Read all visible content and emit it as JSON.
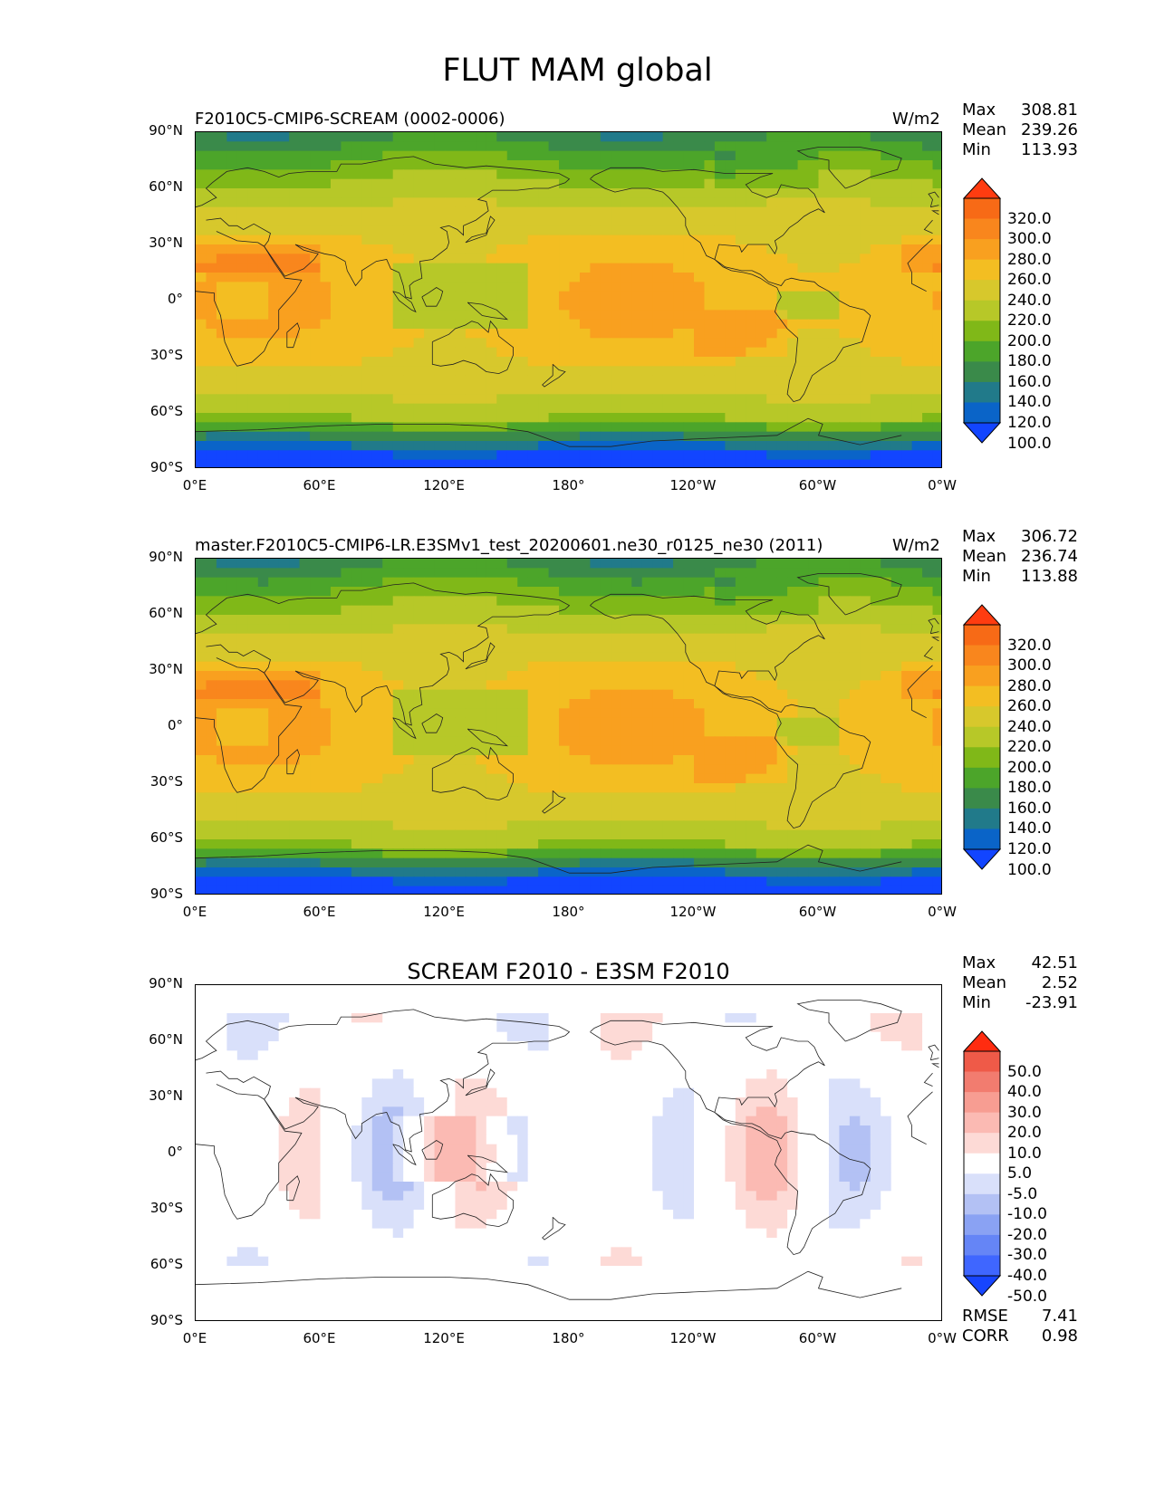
{
  "figure": {
    "title": "FLUT MAM global"
  },
  "axes": {
    "y_ticks": [
      "90°N",
      "60°N",
      "30°N",
      "0°",
      "30°S",
      "60°S",
      "90°S"
    ],
    "x_ticks": [
      "0°E",
      "60°E",
      "120°E",
      "180°",
      "120°W",
      "60°W",
      "0°W"
    ]
  },
  "panels": [
    {
      "name": "test",
      "title_left": "F2010C5-CMIP6-SCREAM (0002-0006)",
      "units": "W/m2",
      "stats": {
        "max_label": "Max",
        "max": "308.81",
        "mean_label": "Mean",
        "mean": "239.26",
        "min_label": "Min",
        "min": "113.93"
      },
      "colorbar_labels": [
        "320.0",
        "300.0",
        "280.0",
        "260.0",
        "240.0",
        "220.0",
        "200.0",
        "180.0",
        "160.0",
        "140.0",
        "120.0",
        "100.0"
      ]
    },
    {
      "name": "reference",
      "title_left": "master.F2010C5-CMIP6-LR.E3SMv1_test_20200601.ne30_r0125_ne30 (2011)",
      "units": "W/m2",
      "stats": {
        "max_label": "Max",
        "max": "306.72",
        "mean_label": "Mean",
        "mean": "236.74",
        "min_label": "Min",
        "min": "113.88"
      },
      "colorbar_labels": [
        "320.0",
        "300.0",
        "280.0",
        "260.0",
        "240.0",
        "220.0",
        "200.0",
        "180.0",
        "160.0",
        "140.0",
        "120.0",
        "100.0"
      ]
    },
    {
      "name": "difference",
      "title_center": "SCREAM F2010 - E3SM F2010",
      "stats": {
        "max_label": "Max",
        "max": "42.51",
        "mean_label": "Mean",
        "mean": "2.52",
        "min_label": "Min",
        "min": "-23.91"
      },
      "colorbar_labels": [
        "50.0",
        "40.0",
        "30.0",
        "20.0",
        "10.0",
        "5.0",
        "-5.0",
        "-10.0",
        "-20.0",
        "-30.0",
        "-40.0",
        "-50.0"
      ],
      "footer": {
        "rmse_label": "RMSE",
        "rmse": "7.41",
        "corr_label": "CORR",
        "corr": "0.98"
      }
    }
  ],
  "colors": {
    "abs_scale": [
      "#1245ff",
      "#0a64c8",
      "#217a8a",
      "#3a8a4a",
      "#4ca52a",
      "#80b818",
      "#b7c828",
      "#d7c82c",
      "#f3be22",
      "#f9a01f",
      "#f9861d",
      "#f76a16",
      "#ff3c10"
    ],
    "diff_scale": [
      "#1745ff",
      "#3f66ff",
      "#6585f6",
      "#8aa2f3",
      "#b3c1f4",
      "#d9e0fa",
      "#ffffff",
      "#fddad6",
      "#fbbab3",
      "#f79d92",
      "#f27c6f",
      "#ef5a48",
      "#ff2c10"
    ],
    "coastline": "#222222"
  }
}
